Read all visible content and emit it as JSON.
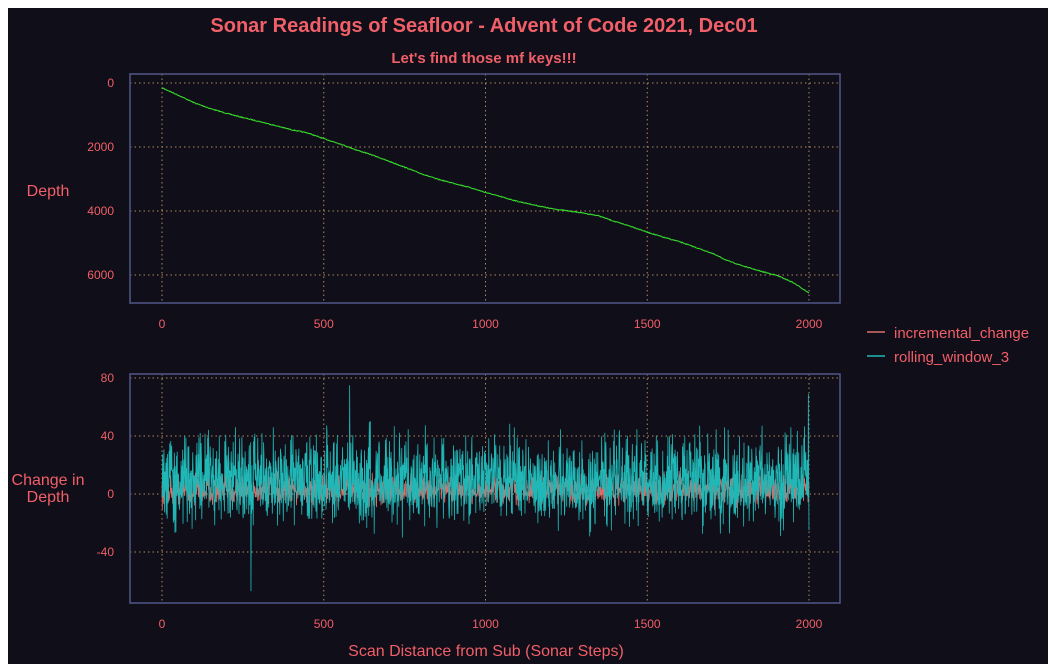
{
  "chart_data": {
    "type": "line",
    "title": "Sonar Readings of Seafloor - Advent of Code 2021, Dec01",
    "subtitle": "Let's find those mf keys!!!",
    "xlabel": "Scan Distance from Sub (Sonar Steps)",
    "x_range": [
      0,
      2000
    ],
    "x_ticks": [
      0,
      500,
      1000,
      1500,
      2000
    ],
    "grid": true,
    "legend_placement": "right",
    "legend": [
      "incremental_change",
      "rolling_window_3"
    ],
    "panels": [
      {
        "ylabel": "Depth",
        "ylim": [
          0,
          6700
        ],
        "y_inverted": true,
        "y_ticks": [
          0,
          2000,
          4000,
          6000
        ],
        "series": [
          {
            "color": "#36d82a",
            "x": [
              0,
              50,
              100,
              150,
              200,
              250,
              300,
              350,
              400,
              450,
              500,
              550,
              600,
              650,
              700,
              750,
              800,
              850,
              900,
              950,
              1000,
              1050,
              1100,
              1150,
              1200,
              1250,
              1300,
              1350,
              1400,
              1450,
              1500,
              1550,
              1600,
              1650,
              1700,
              1750,
              1800,
              1850,
              1900,
              1950,
              2000
            ],
            "values": [
              150,
              380,
              620,
              800,
              950,
              1080,
              1200,
              1330,
              1460,
              1560,
              1740,
              1900,
              2090,
              2250,
              2440,
              2630,
              2830,
              3000,
              3130,
              3260,
              3420,
              3560,
              3700,
              3810,
              3920,
              3990,
              4060,
              4150,
              4330,
              4480,
              4660,
              4820,
              4960,
              5140,
              5320,
              5560,
              5730,
              5880,
              6010,
              6230,
              6560
            ]
          }
        ]
      },
      {
        "ylabel": "Change in Depth",
        "ylim": [
          -75,
          82
        ],
        "y_ticks": [
          -40,
          0,
          40,
          80
        ],
        "series": [
          {
            "name": "incremental_change",
            "color": "#d9706b",
            "center": 3,
            "amplitude": 9
          },
          {
            "name": "rolling_window_3",
            "color": "#20b8b6",
            "center": 10,
            "amplitude": 28,
            "max": 75,
            "min": -67
          }
        ]
      }
    ]
  }
}
